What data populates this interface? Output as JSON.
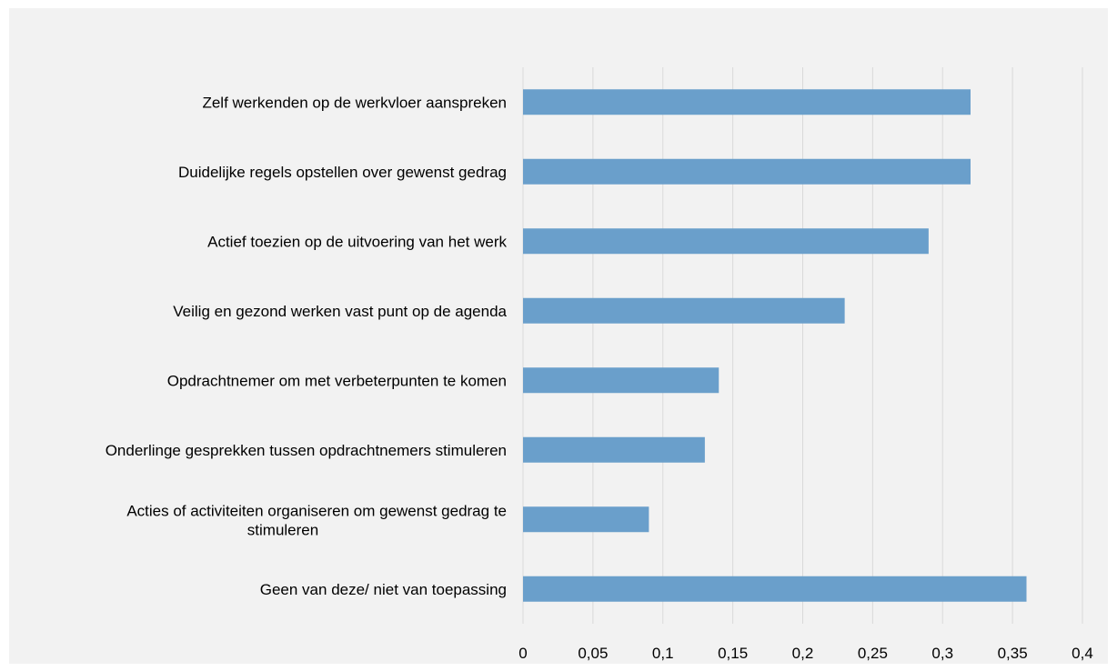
{
  "chart_data": {
    "type": "bar",
    "orientation": "horizontal",
    "categories": [
      "Zelf werkenden op de werkvloer aanspreken",
      "Duidelijke regels opstellen over gewenst gedrag",
      "Actief toezien op de uitvoering van het werk",
      "Veilig en gezond werken vast punt op de agenda",
      "Opdrachtnemer om met verbeterpunten te komen",
      "Onderlinge gesprekken tussen opdrachtnemers stimuleren",
      "Acties of activiteiten organiseren om gewenst gedrag te stimuleren",
      "Geen van deze/ niet van toepassing"
    ],
    "values": [
      0.32,
      0.32,
      0.29,
      0.23,
      0.14,
      0.13,
      0.09,
      0.36
    ],
    "xlim": [
      0,
      0.4
    ],
    "xticks": [
      0,
      0.05,
      0.1,
      0.15,
      0.2,
      0.25,
      0.3,
      0.35,
      0.4
    ],
    "xtick_labels": [
      "0",
      "0,05",
      "0,1",
      "0,15",
      "0,2",
      "0,25",
      "0,3",
      "0,35",
      "0,4"
    ],
    "grid": "vertical",
    "bar_color": "#6a9fcb",
    "background_color": "#f2f2f2",
    "title": "",
    "xlabel": "",
    "ylabel": ""
  }
}
